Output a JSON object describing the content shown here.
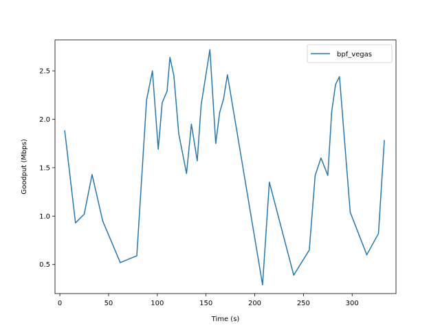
{
  "chart_data": {
    "type": "line",
    "title": "",
    "xlabel": "Time (s)",
    "ylabel": "Goodput (Mbps)",
    "xlim": [
      -5,
      345
    ],
    "ylim": [
      0.2,
      2.82
    ],
    "xticks": [
      0,
      50,
      100,
      150,
      200,
      250,
      300
    ],
    "yticks": [
      0.5,
      1.0,
      1.5,
      2.0,
      2.5
    ],
    "xtick_labels": [
      "0",
      "50",
      "100",
      "150",
      "200",
      "250",
      "300"
    ],
    "ytick_labels": [
      "0.5",
      "1.0",
      "1.5",
      "2.0",
      "2.5"
    ],
    "legend": {
      "position": "top-right"
    },
    "grid": false,
    "series": [
      {
        "name": "bpf_vegas",
        "color": "#1f77b4",
        "x": [
          5,
          16,
          25,
          33,
          44,
          62,
          79,
          89,
          95,
          101,
          105,
          110,
          113,
          117,
          122,
          130,
          135,
          141,
          145,
          154,
          160,
          164,
          168,
          172,
          208,
          215,
          240,
          256,
          262,
          268,
          275,
          279,
          283,
          287,
          298,
          315,
          327,
          333
        ],
        "y": [
          1.88,
          0.93,
          1.02,
          1.43,
          0.95,
          0.52,
          0.59,
          2.2,
          2.5,
          1.69,
          2.17,
          2.29,
          2.64,
          2.45,
          1.85,
          1.44,
          1.95,
          1.57,
          2.15,
          2.72,
          1.75,
          2.07,
          2.21,
          2.46,
          0.29,
          1.35,
          0.39,
          0.65,
          1.42,
          1.6,
          1.42,
          2.08,
          2.36,
          2.44,
          1.04,
          0.6,
          0.82,
          1.78
        ]
      }
    ]
  }
}
